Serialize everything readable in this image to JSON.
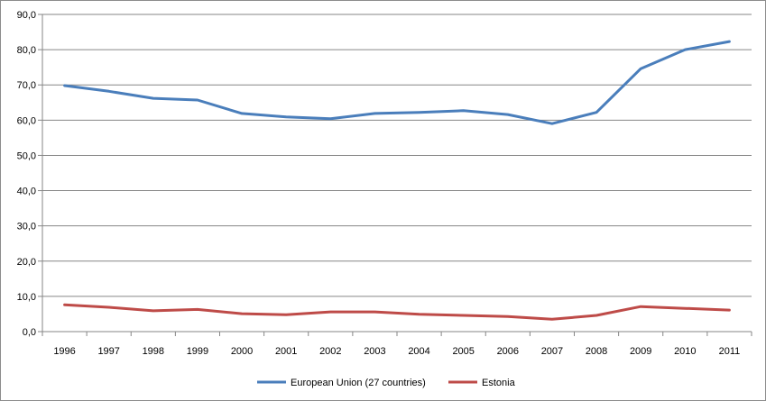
{
  "chart_data": {
    "type": "line",
    "x": [
      "1996",
      "1997",
      "1998",
      "1999",
      "2000",
      "2001",
      "2002",
      "2003",
      "2004",
      "2005",
      "2006",
      "2007",
      "2008",
      "2009",
      "2010",
      "2011"
    ],
    "ylim": [
      0,
      90
    ],
    "yticks": [
      "0,0",
      "10,0",
      "20,0",
      "30,0",
      "40,0",
      "50,0",
      "60,0",
      "70,0",
      "80,0",
      "90,0"
    ],
    "grid": true,
    "legend_position": "bottom",
    "series": [
      {
        "name": "European Union (27 countries)",
        "color": "#4a7ebb",
        "values": [
          69.8,
          68.2,
          66.2,
          65.7,
          61.9,
          60.9,
          60.4,
          61.9,
          62.2,
          62.7,
          61.6,
          59.0,
          62.2,
          74.6,
          80.0,
          82.3
        ]
      },
      {
        "name": "Estonia",
        "color": "#be4b48",
        "values": [
          7.6,
          6.9,
          5.9,
          6.3,
          5.1,
          4.8,
          5.6,
          5.6,
          4.9,
          4.6,
          4.3,
          3.5,
          4.6,
          7.1,
          6.6,
          6.1
        ]
      }
    ]
  }
}
